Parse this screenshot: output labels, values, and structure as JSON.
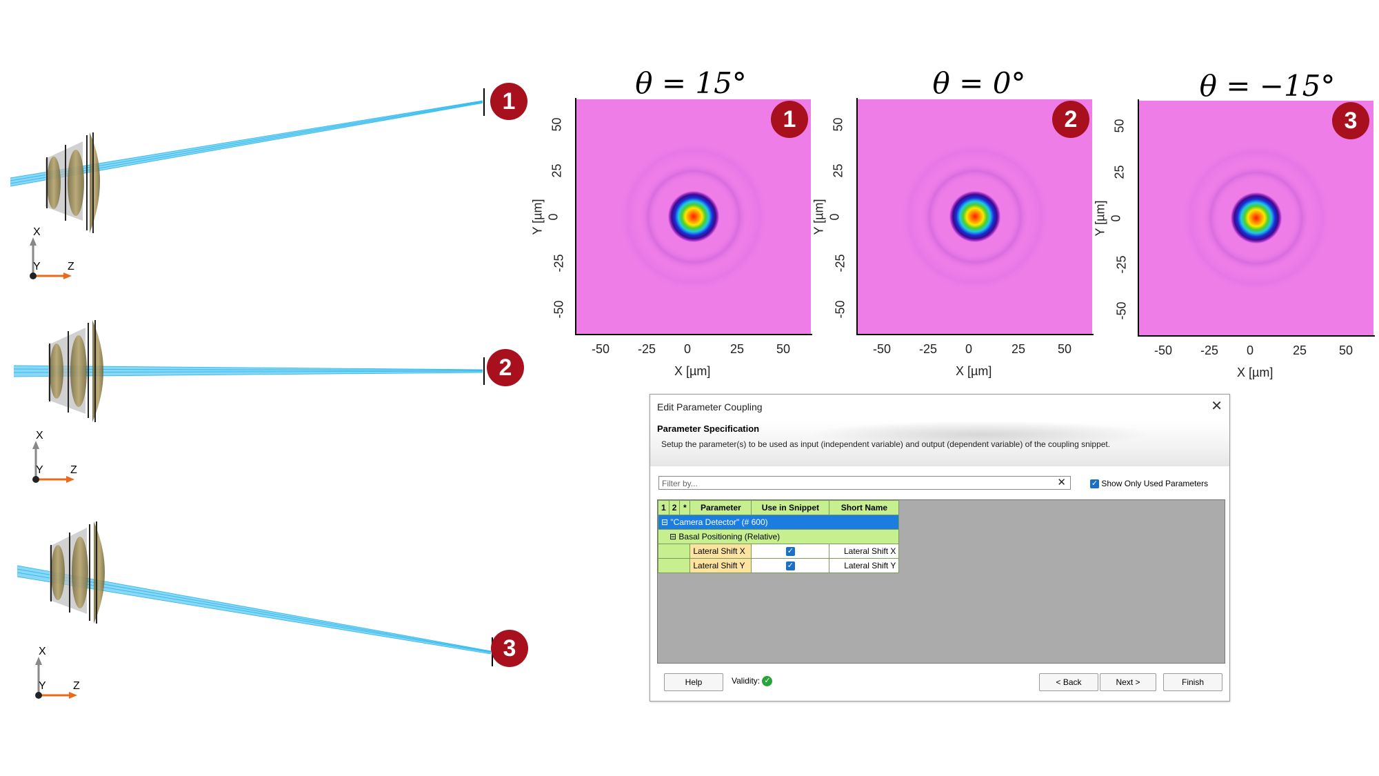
{
  "badges": [
    "1",
    "2",
    "3"
  ],
  "axis_labels": {
    "x": "X",
    "y": "Y",
    "z": "Z"
  },
  "plots": [
    {
      "title": "θ = 15°",
      "badge": "1"
    },
    {
      "title": "θ = 0°",
      "badge": "2"
    },
    {
      "title": "θ = −15°",
      "badge": "3"
    }
  ],
  "plot_axes": {
    "xlabel": "X [µm]",
    "ylabel": "Y [µm]",
    "xticks": [
      "-50",
      "-25",
      "0",
      "25",
      "50"
    ],
    "yticks": [
      "50",
      "25",
      "0",
      "-25",
      "-50"
    ]
  },
  "colors": {
    "badge": "#a8101e",
    "field_bg": "#ee7de8",
    "ray": "#2ab8ee",
    "lens": "#8a7a40"
  },
  "dialog": {
    "title": "Edit Parameter Coupling",
    "close": "✕",
    "section_title": "Parameter Specification",
    "section_desc": "Setup the parameter(s) to be used as input (independent variable) and output (dependent variable) of the coupling snippet.",
    "filter_placeholder": "Filter by...",
    "filter_clear": "✕",
    "show_used_label": "Show Only Used Parameters",
    "columns": [
      "1",
      "2",
      "*",
      "Parameter",
      "Use in Snippet",
      "Short Name"
    ],
    "tree_root": "\"Camera Detector\" (# 600)",
    "tree_group": "Basal Positioning (Relative)",
    "rows": [
      {
        "parameter": "Lateral Shift X",
        "short_name": "Lateral Shift X"
      },
      {
        "parameter": "Lateral Shift Y",
        "short_name": "Lateral Shift Y"
      }
    ],
    "help": "Help",
    "validity": "Validity:",
    "back": "< Back",
    "next": "Next >",
    "finish": "Finish"
  }
}
